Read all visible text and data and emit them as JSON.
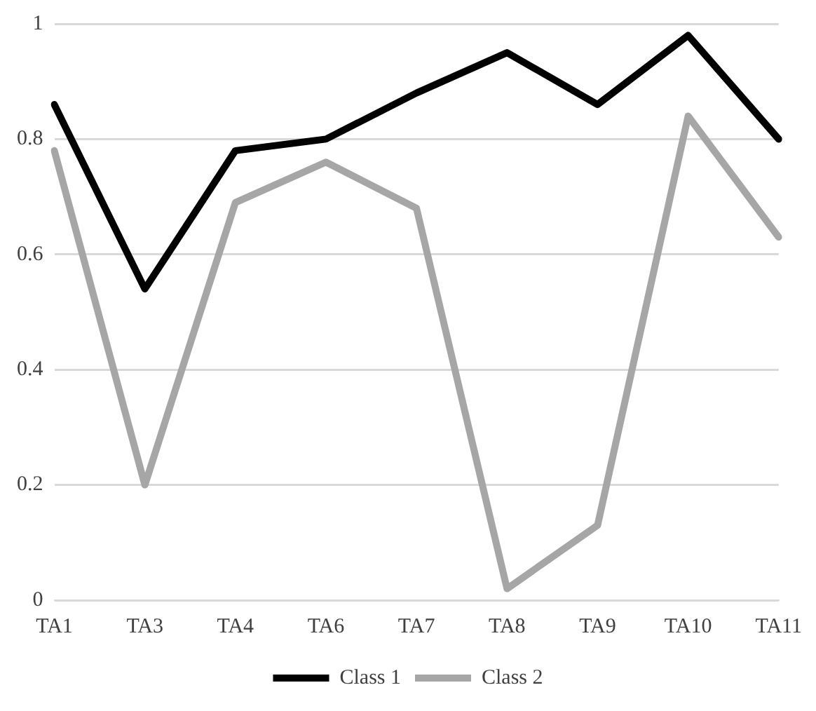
{
  "chart_data": {
    "type": "line",
    "categories": [
      "TA1",
      "TA3",
      "TA4",
      "TA6",
      "TA7",
      "TA8",
      "TA9",
      "TA10",
      "TA11"
    ],
    "series": [
      {
        "name": "Class 1",
        "color": "#000000",
        "values": [
          0.86,
          0.54,
          0.78,
          0.8,
          0.88,
          0.95,
          0.86,
          0.98,
          0.8
        ]
      },
      {
        "name": "Class 2",
        "color": "#a6a6a6",
        "values": [
          0.78,
          0.2,
          0.69,
          0.76,
          0.68,
          0.02,
          0.13,
          0.84,
          0.63
        ]
      }
    ],
    "ylim": [
      0,
      1
    ],
    "yticks": [
      0,
      {
        "value": 0.2,
        "label": "0.2"
      },
      {
        "value": 0.4,
        "label": "0.4"
      },
      {
        "value": 0.6,
        "label": "0.6"
      },
      {
        "value": 0.8,
        "label": "0.8"
      },
      1
    ],
    "grid": "y",
    "legend": "bottom",
    "marker": "none",
    "line_style": "solid"
  }
}
